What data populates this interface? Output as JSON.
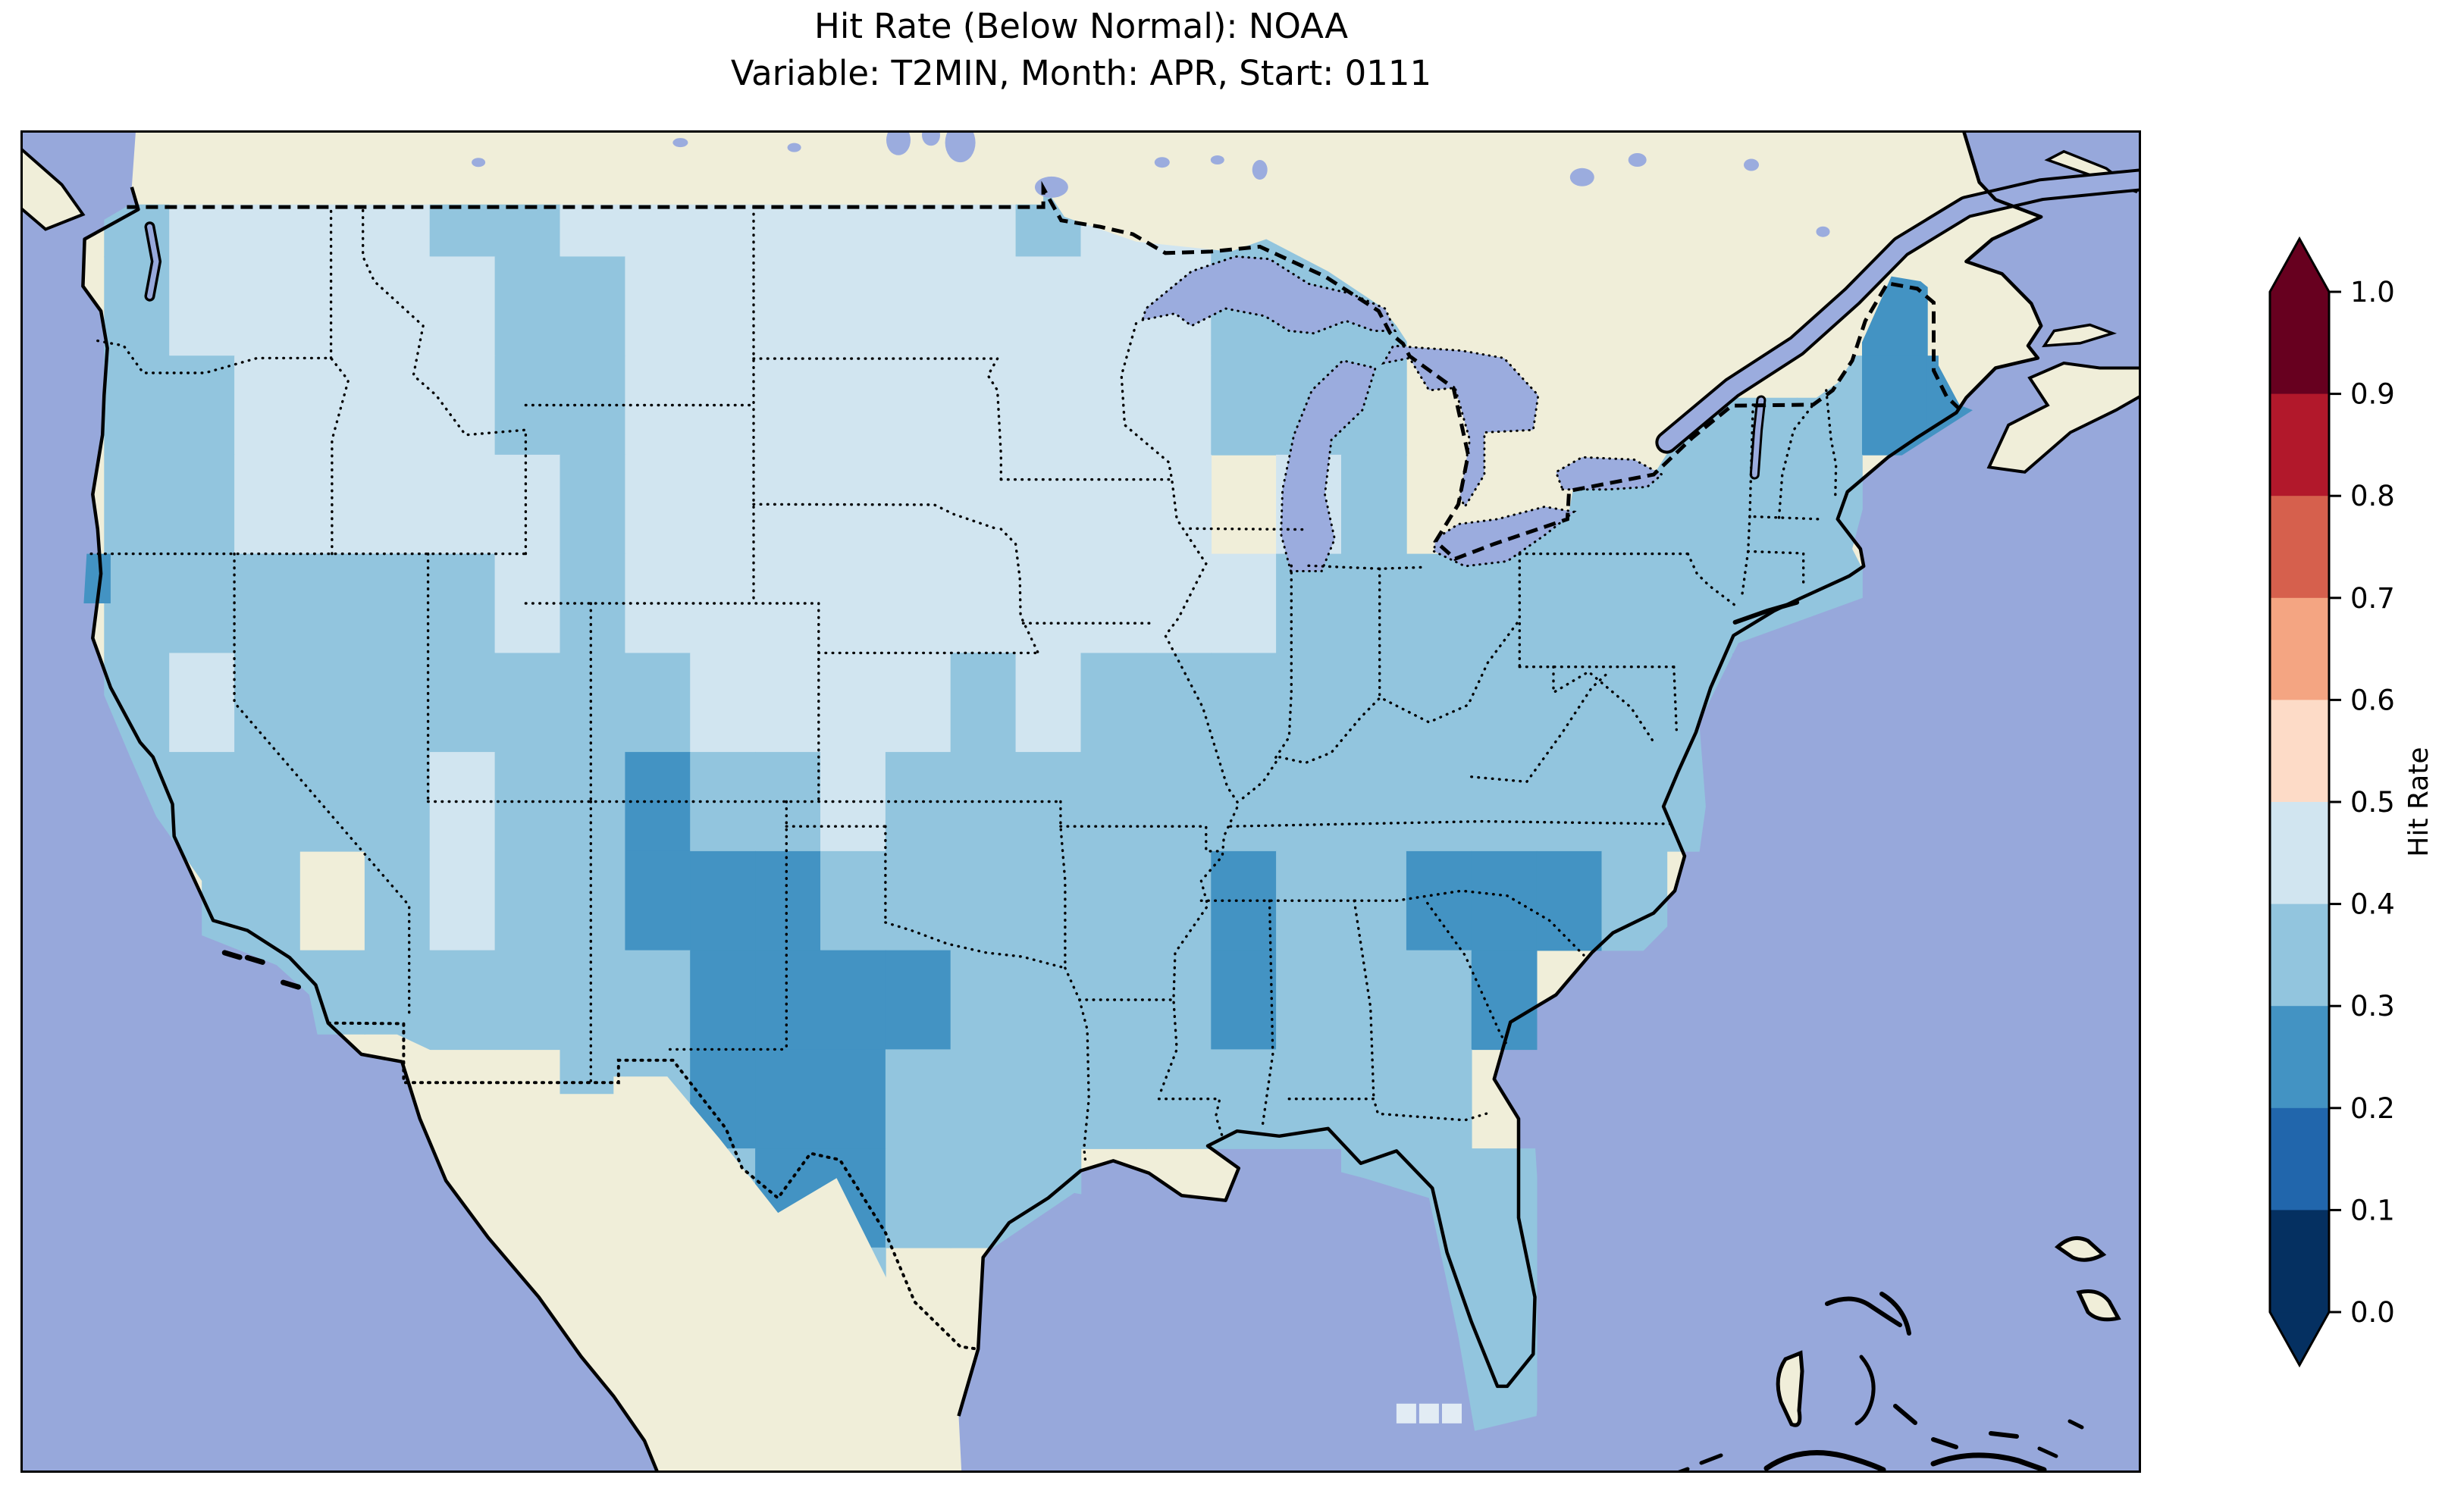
{
  "figure": {
    "title_line1": "Hit Rate (Below Normal): NOAA",
    "title_line2": "Variable: T2MIN, Month: APR, Start: 0111",
    "background": "#ffffff"
  },
  "colorbar": {
    "label": "Hit Rate",
    "ticks": [
      "1.0",
      "0.9",
      "0.8",
      "0.7",
      "0.6",
      "0.5",
      "0.4",
      "0.3",
      "0.2",
      "0.1",
      "0.0"
    ],
    "bin_colors_bottom_to_top": [
      "#053061",
      "#2166ac",
      "#4393c3",
      "#92c5de",
      "#d1e5f0",
      "#fddbc7",
      "#f4a582",
      "#d6604d",
      "#b2182b",
      "#67001f"
    ],
    "extend_low_color": "#053061",
    "extend_high_color": "#67001f",
    "outline_color": "#000000"
  },
  "map_colors": {
    "ocean": "#97a8db",
    "land": "#f0eed9",
    "lake": "#9bacde",
    "coastline": "#000000",
    "border": "#000000",
    "masked_cell": "#e2ecf4"
  },
  "chart_data": {
    "type": "heatmap",
    "title": "Hit Rate (Below Normal): NOAA",
    "subtitle": "Variable: T2MIN, Month: APR, Start: 0111",
    "metric": "Hit Rate (Below Normal)",
    "source": "NOAA",
    "variable": "T2MIN",
    "month": "APR",
    "start": "0111",
    "colorbar_range": [
      0.0,
      1.0
    ],
    "bin_edges": [
      0.0,
      0.1,
      0.2,
      0.3,
      0.4,
      0.5,
      0.6,
      0.7,
      0.8,
      0.9,
      1.0
    ],
    "legend_note": "values observed on map fall in 0.2-0.5 bins (blues)",
    "palette": {
      "2": "#4393c3",
      "3": "#92c5de",
      "4": "#d1e5f0"
    },
    "bin_meaning": {
      "2": "0.2-0.3",
      "3": "0.3-0.4",
      "4": "0.4-0.5"
    },
    "grid_origin": {
      "lon": -126,
      "lat": 50
    },
    "cell_size_deg": 2,
    "extent": {
      "lon_min": -126.5,
      "lon_max": -61.5,
      "lat_min": 23.5,
      "lat_max": 50.5
    },
    "rows": [
      ".3444433444444434433..........",
      ".34444433444444444333.......2.",
      ".33444433444444444333....33322",
      ".33444443444444444.43.333333..",
      ".333333434444444444333333333..",
      ".3433333334444343333333333....",
      ".3333343323343333333333333....",
      "..33.34332223333332332223.....",
      "...33333332222333323332.......",
      "........33222333333333........",
      "..........322333....333.......",
      "...........33........33.......",
      ".....................33......."
    ]
  }
}
